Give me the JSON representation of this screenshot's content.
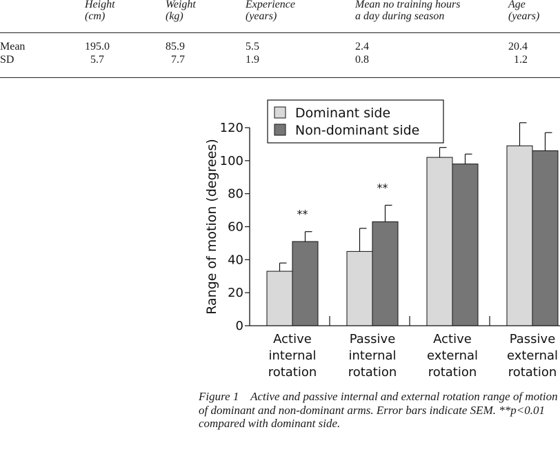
{
  "table": {
    "columns": [
      "Height\n(cm)",
      "Weight\n(kg)",
      "Experience\n(years)",
      "Mean no training hours\na day during season",
      "Age\n(years)"
    ],
    "rows": [
      {
        "label": "Mean",
        "values": [
          "195.0",
          "85.9",
          "5.5",
          "2.4",
          "20.4"
        ]
      },
      {
        "label": "SD",
        "values": [
          "5.7",
          "7.7",
          "1.9",
          "0.8",
          "1.2"
        ]
      }
    ]
  },
  "chart_data": {
    "type": "bar",
    "title": "",
    "ylabel": "Range of motion (degrees)",
    "xlabel": "",
    "ylim": [
      0,
      120
    ],
    "yticks": [
      0,
      20,
      40,
      60,
      80,
      100,
      120
    ],
    "categories": [
      [
        "Active",
        "internal",
        "rotation"
      ],
      [
        "Passive",
        "internal",
        "rotation"
      ],
      [
        "Active",
        "external",
        "rotation"
      ],
      [
        "Passive",
        "external",
        "rotation"
      ]
    ],
    "series": [
      {
        "name": "Dominant side",
        "color": "#d9d9d9",
        "values": [
          33,
          45,
          102,
          109
        ],
        "errors": [
          5,
          14,
          6,
          14
        ]
      },
      {
        "name": "Non-dominant side",
        "color": "#767676",
        "values": [
          51,
          63,
          98,
          106
        ],
        "errors": [
          6,
          10,
          6,
          11
        ]
      }
    ],
    "annotations": [
      {
        "category": 0,
        "text": "**"
      },
      {
        "category": 1,
        "text": "**"
      }
    ],
    "legend_position": "top-left",
    "grid": false
  },
  "caption": {
    "label": "Figure 1",
    "text": "Active and passive internal and external rotation range of motion of dominant and non-dominant arms. Error bars indicate SEM. **p<0.01 compared with dominant side."
  }
}
